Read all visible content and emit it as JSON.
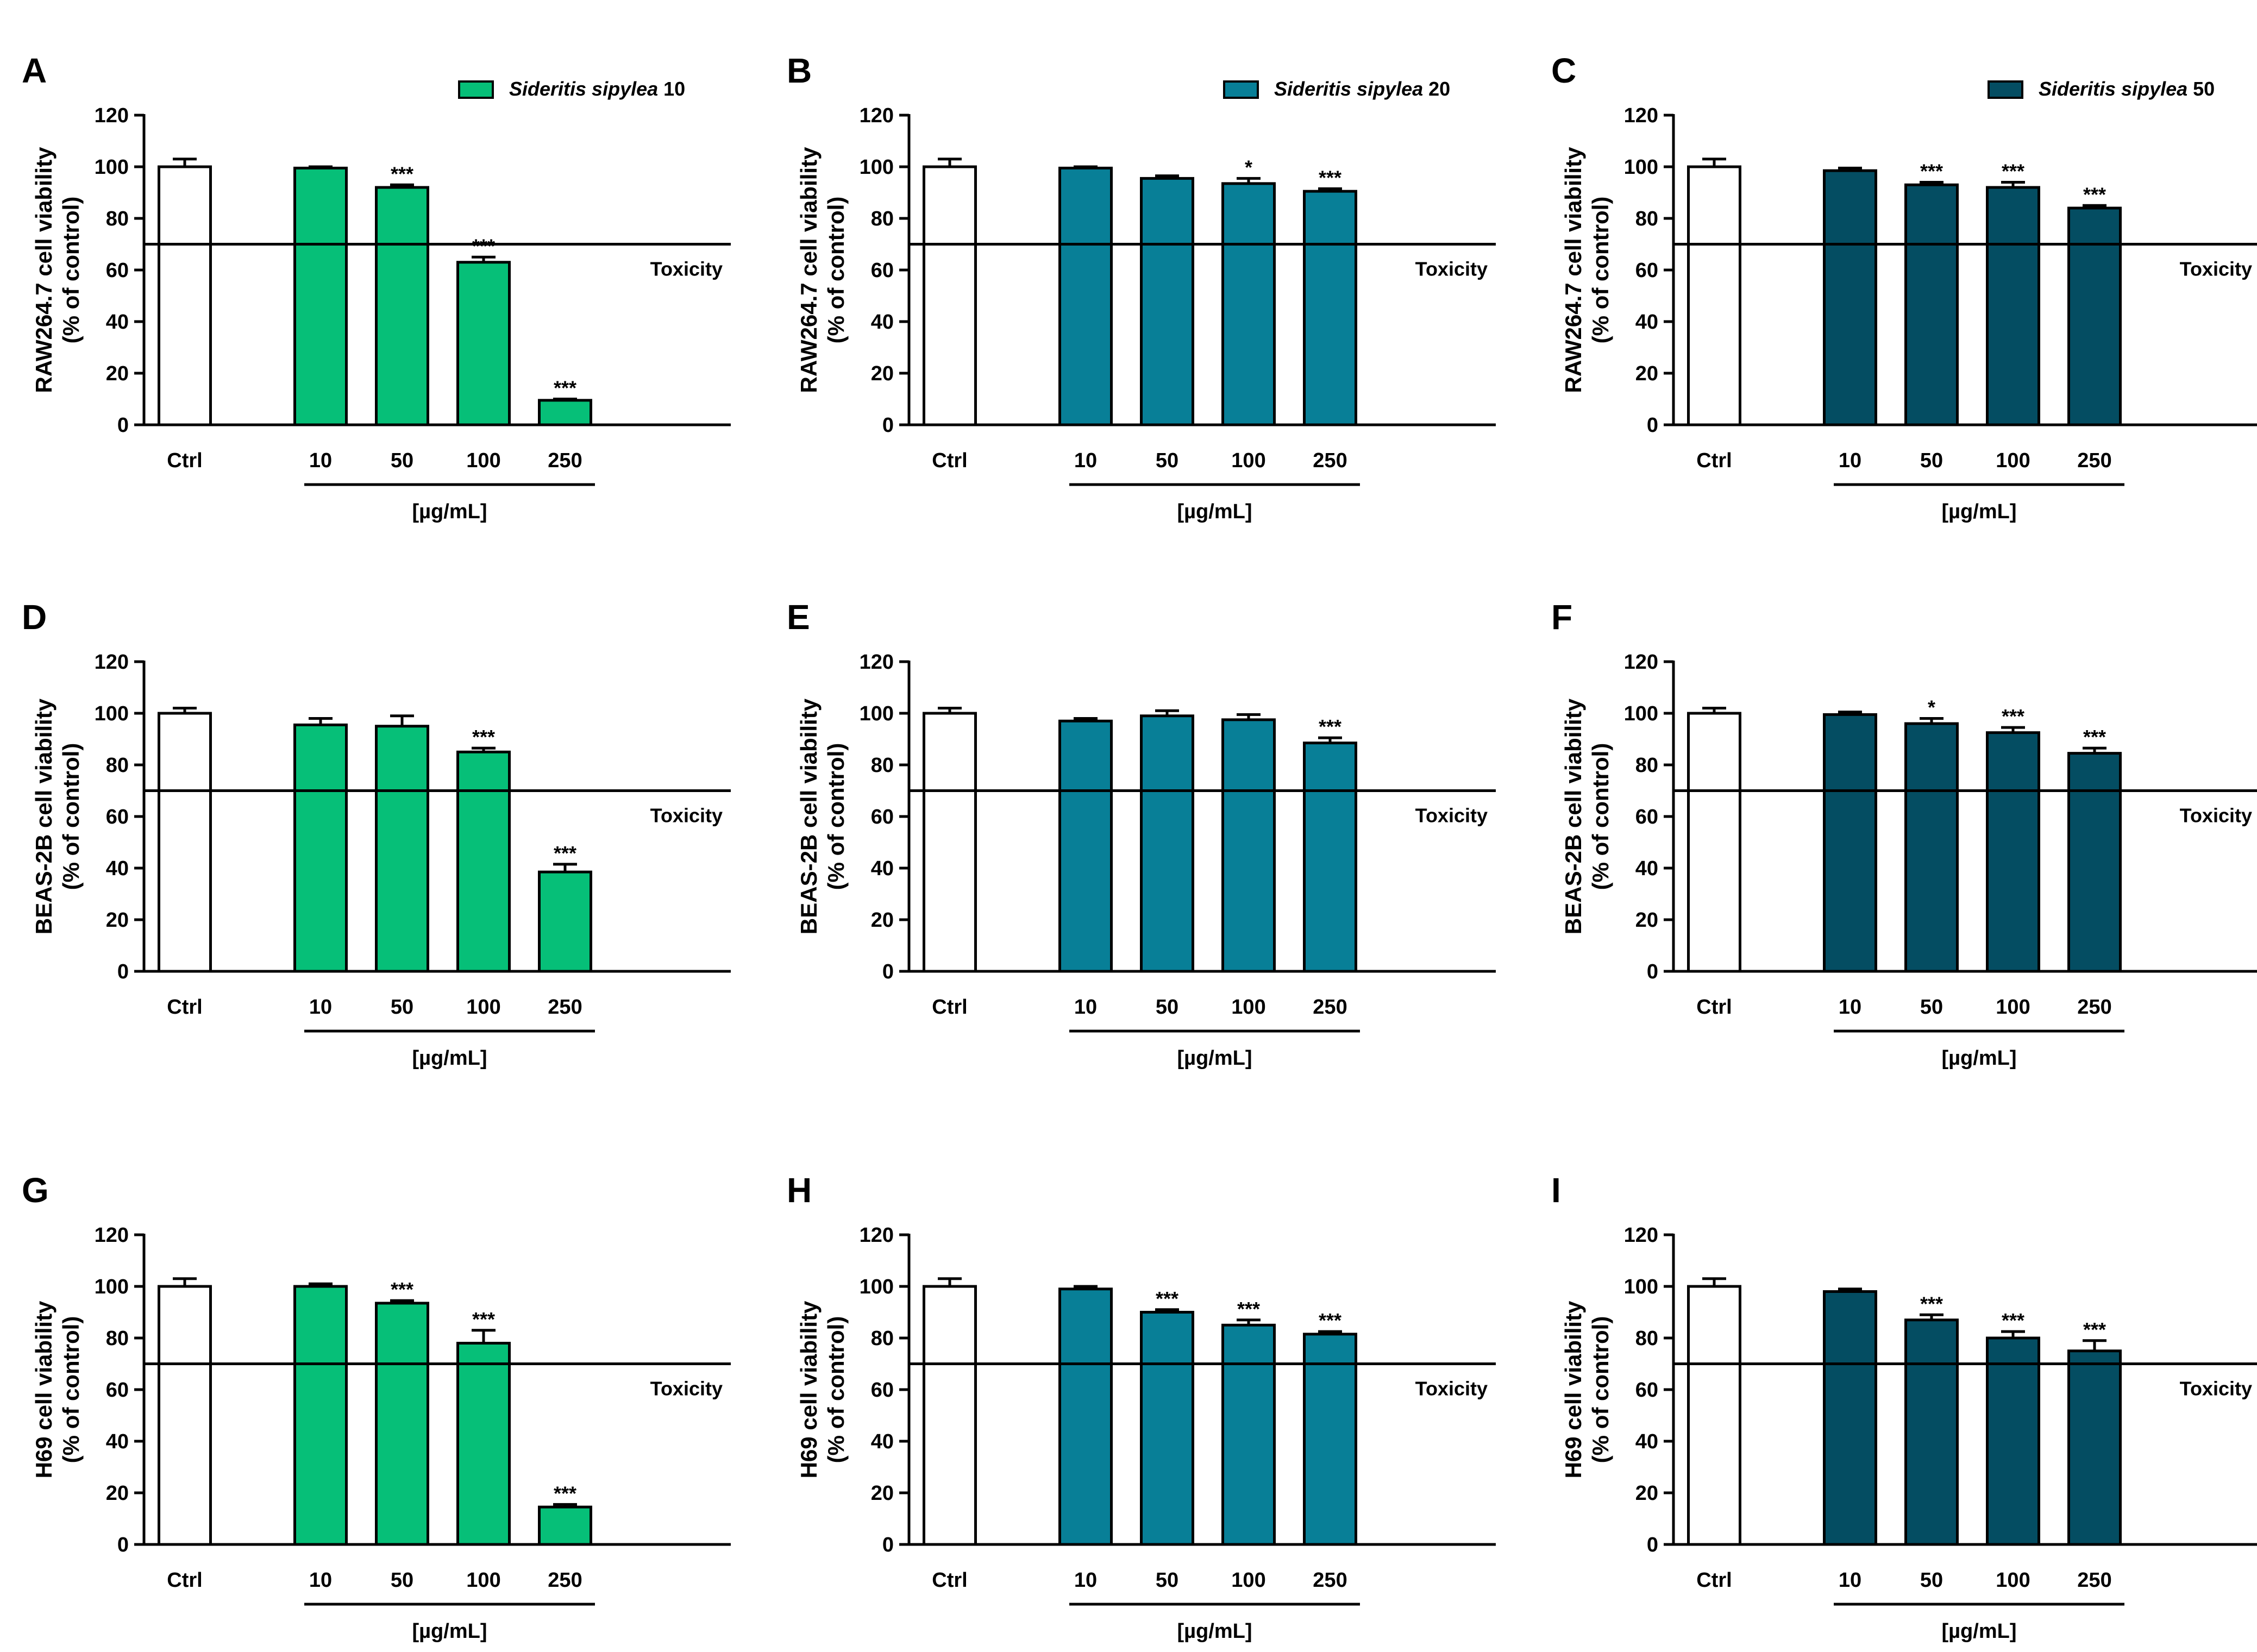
{
  "colors": {
    "ctrl": "#ffffff",
    "sideritis_10": "#06bf78",
    "sideritis_20": "#087f97",
    "sideritis_50": "#044d62",
    "axis": "#000000"
  },
  "chart_data": [
    {
      "panel": "A",
      "type": "bar",
      "title": "",
      "ylabel_line1": "RAW264.7 cell viability",
      "ylabel_line2": "(% of control)",
      "ylim": [
        0,
        120
      ],
      "yticks": [
        0,
        20,
        40,
        60,
        80,
        100,
        120
      ],
      "categories": [
        "Ctrl",
        "10",
        "50",
        "100",
        "250"
      ],
      "values": [
        100,
        99.5,
        92,
        63,
        9.5
      ],
      "errors": [
        3,
        0.5,
        1,
        2,
        0.5
      ],
      "significance": [
        "",
        "",
        "***",
        "***",
        "***"
      ],
      "group_label": "[µg/mL]",
      "threshold": 70,
      "threshold_label": "Toxicity",
      "series_color_key": "sideritis_10",
      "legend": {
        "name_italic": "Sideritis sipylea",
        "name_suffix": " 10"
      }
    },
    {
      "panel": "B",
      "type": "bar",
      "title": "",
      "ylabel_line1": "RAW264.7 cell viability",
      "ylabel_line2": "(% of control)",
      "ylim": [
        0,
        120
      ],
      "yticks": [
        0,
        20,
        40,
        60,
        80,
        100,
        120
      ],
      "categories": [
        "Ctrl",
        "10",
        "50",
        "100",
        "250"
      ],
      "values": [
        100,
        99.5,
        95.5,
        93.5,
        90.5
      ],
      "errors": [
        3,
        0.5,
        1,
        2,
        1
      ],
      "significance": [
        "",
        "",
        "",
        "*",
        "***"
      ],
      "group_label": "[µg/mL]",
      "threshold": 70,
      "threshold_label": "Toxicity",
      "series_color_key": "sideritis_20",
      "legend": {
        "name_italic": "Sideritis sipylea",
        "name_suffix": " 20"
      }
    },
    {
      "panel": "C",
      "type": "bar",
      "title": "",
      "ylabel_line1": "RAW264.7 cell viability",
      "ylabel_line2": "(% of control)",
      "ylim": [
        0,
        120
      ],
      "yticks": [
        0,
        20,
        40,
        60,
        80,
        100,
        120
      ],
      "categories": [
        "Ctrl",
        "10",
        "50",
        "100",
        "250"
      ],
      "values": [
        100,
        98.5,
        93,
        92,
        84
      ],
      "errors": [
        3,
        1,
        1,
        2,
        1
      ],
      "significance": [
        "",
        "",
        "***",
        "***",
        "***"
      ],
      "group_label": "[µg/mL]",
      "threshold": 70,
      "threshold_label": "Toxicity",
      "series_color_key": "sideritis_50",
      "legend": {
        "name_italic": "Sideritis sipylea",
        "name_suffix": " 50"
      }
    },
    {
      "panel": "D",
      "type": "bar",
      "title": "",
      "ylabel_line1": "BEAS-2B cell viability",
      "ylabel_line2": "(% of control)",
      "ylim": [
        0,
        120
      ],
      "yticks": [
        0,
        20,
        40,
        60,
        80,
        100,
        120
      ],
      "categories": [
        "Ctrl",
        "10",
        "50",
        "100",
        "250"
      ],
      "values": [
        100,
        95.5,
        95,
        85,
        38.5
      ],
      "errors": [
        2,
        2.5,
        4,
        1.5,
        3
      ],
      "significance": [
        "",
        "",
        "",
        "***",
        "***"
      ],
      "group_label": "[µg/mL]",
      "threshold": 70,
      "threshold_label": "Toxicity",
      "series_color_key": "sideritis_10",
      "legend": null
    },
    {
      "panel": "E",
      "type": "bar",
      "title": "",
      "ylabel_line1": "BEAS-2B cell viability",
      "ylabel_line2": "(% of control)",
      "ylim": [
        0,
        120
      ],
      "yticks": [
        0,
        20,
        40,
        60,
        80,
        100,
        120
      ],
      "categories": [
        "Ctrl",
        "10",
        "50",
        "100",
        "250"
      ],
      "values": [
        100,
        97,
        99,
        97.5,
        88.5
      ],
      "errors": [
        2,
        1,
        2,
        2,
        2
      ],
      "significance": [
        "",
        "",
        "",
        "",
        "***"
      ],
      "group_label": "[µg/mL]",
      "threshold": 70,
      "threshold_label": "Toxicity",
      "series_color_key": "sideritis_20",
      "legend": null
    },
    {
      "panel": "F",
      "type": "bar",
      "title": "",
      "ylabel_line1": "BEAS-2B cell viability",
      "ylabel_line2": "(% of control)",
      "ylim": [
        0,
        120
      ],
      "yticks": [
        0,
        20,
        40,
        60,
        80,
        100,
        120
      ],
      "categories": [
        "Ctrl",
        "10",
        "50",
        "100",
        "250"
      ],
      "values": [
        100,
        99.5,
        96,
        92.5,
        84.5
      ],
      "errors": [
        2,
        1,
        2,
        2,
        2
      ],
      "significance": [
        "",
        "",
        "*",
        "***",
        "***"
      ],
      "group_label": "[µg/mL]",
      "threshold": 70,
      "threshold_label": "Toxicity",
      "series_color_key": "sideritis_50",
      "legend": null
    },
    {
      "panel": "G",
      "type": "bar",
      "title": "",
      "ylabel_line1": "H69 cell viability",
      "ylabel_line2": "(% of control)",
      "ylim": [
        0,
        120
      ],
      "yticks": [
        0,
        20,
        40,
        60,
        80,
        100,
        120
      ],
      "categories": [
        "Ctrl",
        "10",
        "50",
        "100",
        "250"
      ],
      "values": [
        100,
        100,
        93.5,
        78,
        14.5
      ],
      "errors": [
        3,
        1,
        1,
        5,
        1
      ],
      "significance": [
        "",
        "",
        "***",
        "***",
        "***"
      ],
      "group_label": "[µg/mL]",
      "threshold": 70,
      "threshold_label": "Toxicity",
      "series_color_key": "sideritis_10",
      "legend": null
    },
    {
      "panel": "H",
      "type": "bar",
      "title": "",
      "ylabel_line1": "H69 cell viability",
      "ylabel_line2": "(% of control)",
      "ylim": [
        0,
        120
      ],
      "yticks": [
        0,
        20,
        40,
        60,
        80,
        100,
        120
      ],
      "categories": [
        "Ctrl",
        "10",
        "50",
        "100",
        "250"
      ],
      "values": [
        100,
        99,
        90,
        85,
        81.5
      ],
      "errors": [
        3,
        1,
        1,
        2,
        1
      ],
      "significance": [
        "",
        "",
        "***",
        "***",
        "***"
      ],
      "group_label": "[µg/mL]",
      "threshold": 70,
      "threshold_label": "Toxicity",
      "series_color_key": "sideritis_20",
      "legend": null
    },
    {
      "panel": "I",
      "type": "bar",
      "title": "",
      "ylabel_line1": "H69 cell viability",
      "ylabel_line2": "(% of control)",
      "ylim": [
        0,
        120
      ],
      "yticks": [
        0,
        20,
        40,
        60,
        80,
        100,
        120
      ],
      "categories": [
        "Ctrl",
        "10",
        "50",
        "100",
        "250"
      ],
      "values": [
        100,
        98,
        87,
        80,
        75
      ],
      "errors": [
        3,
        1,
        2,
        2.5,
        4
      ],
      "significance": [
        "",
        "",
        "***",
        "***",
        "***"
      ],
      "group_label": "[µg/mL]",
      "threshold": 70,
      "threshold_label": "Toxicity",
      "series_color_key": "sideritis_50",
      "legend": null
    }
  ]
}
